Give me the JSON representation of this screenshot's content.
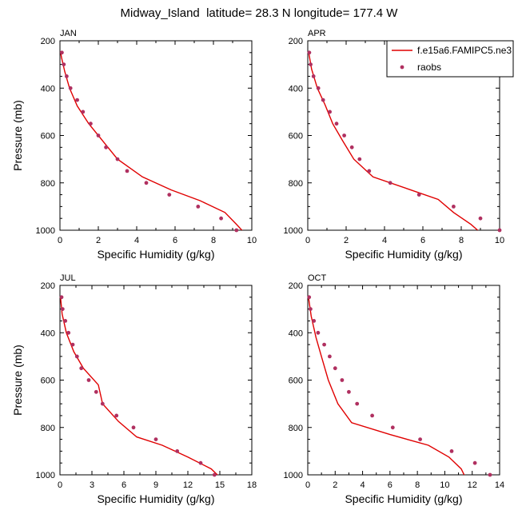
{
  "title": "Midway_Island  latitude= 28.3 N longitude= 177.4 W",
  "legend": {
    "model_label": "f.e15a6.FAMIPC5.ne3",
    "obs_label": "raobs",
    "model_color": "#e00000",
    "obs_color": "#b03060"
  },
  "chart_data": [
    {
      "type": "line",
      "panel": "JAN",
      "xlabel": "Specific Humidity (g/kg)",
      "ylabel": "Pressure (mb)",
      "xlim": [
        0,
        10
      ],
      "ylim": [
        1000,
        200
      ],
      "y_reversed": true,
      "xticks": [
        0,
        2,
        4,
        6,
        8,
        10
      ],
      "yticks": [
        200,
        400,
        600,
        800,
        1000
      ],
      "legend_shown": false,
      "series": [
        {
          "name": "f.e15a6.FAMIPC5.ne3",
          "kind": "line",
          "points": [
            [
              9.6,
              1010
            ],
            [
              9.2,
              975
            ],
            [
              8.6,
              925
            ],
            [
              7.3,
              875
            ],
            [
              5.8,
              830
            ],
            [
              4.3,
              775
            ],
            [
              3.0,
              700
            ],
            [
              2.2,
              620
            ],
            [
              1.5,
              550
            ],
            [
              0.9,
              475
            ],
            [
              0.5,
              400
            ],
            [
              0.25,
              330
            ],
            [
              0.08,
              270
            ],
            [
              0.03,
              245
            ]
          ]
        },
        {
          "name": "raobs",
          "kind": "scatter",
          "points": [
            [
              9.2,
              1000
            ],
            [
              8.4,
              950
            ],
            [
              7.2,
              900
            ],
            [
              5.7,
              850
            ],
            [
              4.5,
              800
            ],
            [
              3.5,
              750
            ],
            [
              3.0,
              700
            ],
            [
              2.4,
              650
            ],
            [
              2.0,
              600
            ],
            [
              1.6,
              550
            ],
            [
              1.2,
              500
            ],
            [
              0.9,
              450
            ],
            [
              0.55,
              400
            ],
            [
              0.35,
              350
            ],
            [
              0.2,
              300
            ],
            [
              0.1,
              250
            ]
          ]
        }
      ]
    },
    {
      "type": "line",
      "panel": "APR",
      "xlabel": "Specific Humidity (g/kg)",
      "ylabel": "",
      "xlim": [
        0,
        10
      ],
      "ylim": [
        1000,
        200
      ],
      "y_reversed": true,
      "xticks": [
        0,
        2,
        4,
        6,
        8,
        10
      ],
      "yticks": [
        200,
        400,
        600,
        800,
        1000
      ],
      "legend_shown": true,
      "legend_position": "top-right",
      "series": [
        {
          "name": "f.e15a6.FAMIPC5.ne3",
          "kind": "line",
          "points": [
            [
              9.0,
              1010
            ],
            [
              8.5,
              975
            ],
            [
              7.6,
              925
            ],
            [
              6.8,
              870
            ],
            [
              5.2,
              825
            ],
            [
              3.4,
              775
            ],
            [
              2.4,
              700
            ],
            [
              1.8,
              620
            ],
            [
              1.3,
              550
            ],
            [
              0.9,
              470
            ],
            [
              0.5,
              400
            ],
            [
              0.2,
              320
            ],
            [
              0.05,
              250
            ]
          ]
        },
        {
          "name": "raobs",
          "kind": "scatter",
          "points": [
            [
              10,
              1000
            ],
            [
              9.0,
              950
            ],
            [
              7.6,
              900
            ],
            [
              5.8,
              850
            ],
            [
              4.3,
              800
            ],
            [
              3.2,
              750
            ],
            [
              2.7,
              700
            ],
            [
              2.3,
              650
            ],
            [
              1.9,
              600
            ],
            [
              1.5,
              550
            ],
            [
              1.15,
              500
            ],
            [
              0.8,
              450
            ],
            [
              0.55,
              400
            ],
            [
              0.3,
              350
            ],
            [
              0.15,
              300
            ],
            [
              0.08,
              250
            ]
          ]
        }
      ]
    },
    {
      "type": "line",
      "panel": "JUL",
      "xlabel": "Specific Humidity (g/kg)",
      "ylabel": "Pressure (mb)",
      "xlim": [
        0,
        18
      ],
      "ylim": [
        1000,
        200
      ],
      "y_reversed": true,
      "xticks": [
        0,
        3,
        6,
        9,
        12,
        15,
        18
      ],
      "yticks": [
        200,
        400,
        600,
        800,
        1000
      ],
      "legend_shown": false,
      "series": [
        {
          "name": "f.e15a6.FAMIPC5.ne3",
          "kind": "line",
          "points": [
            [
              15.0,
              1010
            ],
            [
              14.2,
              975
            ],
            [
              12.0,
              925
            ],
            [
              9.6,
              875
            ],
            [
              7.2,
              840
            ],
            [
              5.5,
              775
            ],
            [
              4.0,
              700
            ],
            [
              3.6,
              620
            ],
            [
              2.2,
              550
            ],
            [
              1.3,
              480
            ],
            [
              0.6,
              400
            ],
            [
              0.2,
              320
            ],
            [
              0.05,
              250
            ]
          ]
        },
        {
          "name": "raobs",
          "kind": "scatter",
          "points": [
            [
              14.5,
              1000
            ],
            [
              13.2,
              950
            ],
            [
              11.0,
              900
            ],
            [
              9.0,
              850
            ],
            [
              6.9,
              800
            ],
            [
              5.3,
              750
            ],
            [
              4.0,
              700
            ],
            [
              3.4,
              650
            ],
            [
              2.7,
              600
            ],
            [
              2.0,
              550
            ],
            [
              1.6,
              500
            ],
            [
              1.2,
              450
            ],
            [
              0.8,
              400
            ],
            [
              0.5,
              350
            ],
            [
              0.25,
              300
            ],
            [
              0.15,
              250
            ]
          ]
        }
      ]
    },
    {
      "type": "line",
      "panel": "OCT",
      "xlabel": "Specific Humidity (g/kg)",
      "ylabel": "",
      "xlim": [
        0,
        14
      ],
      "ylim": [
        1000,
        200
      ],
      "y_reversed": true,
      "xticks": [
        0,
        2,
        4,
        6,
        8,
        10,
        12,
        14
      ],
      "yticks": [
        200,
        400,
        600,
        800,
        1000
      ],
      "legend_shown": false,
      "series": [
        {
          "name": "f.e15a6.FAMIPC5.ne3",
          "kind": "line",
          "points": [
            [
              11.5,
              1010
            ],
            [
              11.2,
              975
            ],
            [
              10.3,
              925
            ],
            [
              8.8,
              875
            ],
            [
              6.0,
              830
            ],
            [
              3.2,
              780
            ],
            [
              2.2,
              700
            ],
            [
              1.5,
              600
            ],
            [
              1.0,
              500
            ],
            [
              0.6,
              420
            ],
            [
              0.25,
              330
            ],
            [
              0.05,
              250
            ]
          ]
        },
        {
          "name": "raobs",
          "kind": "scatter",
          "points": [
            [
              13.3,
              1000
            ],
            [
              12.2,
              950
            ],
            [
              10.5,
              900
            ],
            [
              8.2,
              850
            ],
            [
              6.2,
              800
            ],
            [
              4.7,
              750
            ],
            [
              3.6,
              700
            ],
            [
              3.0,
              650
            ],
            [
              2.5,
              600
            ],
            [
              2.0,
              550
            ],
            [
              1.6,
              500
            ],
            [
              1.2,
              450
            ],
            [
              0.75,
              400
            ],
            [
              0.45,
              350
            ],
            [
              0.2,
              300
            ],
            [
              0.1,
              250
            ]
          ]
        }
      ]
    }
  ]
}
